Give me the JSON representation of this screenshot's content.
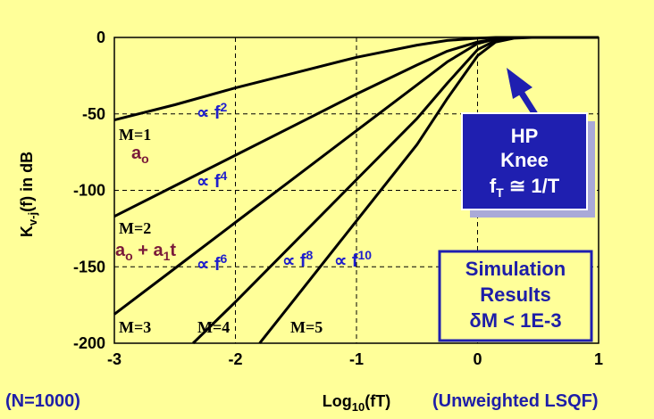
{
  "chart_data": {
    "type": "line",
    "xlabel": "Log10(fT)",
    "xlabel_base": "Log",
    "xlabel_sub": "10",
    "xlabel_rest": "(fT)",
    "ylabel_base": "K",
    "ylabel_sub": "v-j",
    "ylabel_rest": "(f) in dB",
    "xlim": [
      -3,
      1
    ],
    "ylim": [
      -200,
      0
    ],
    "x_ticks": [
      "-3",
      "-2",
      "-1",
      "0",
      "1"
    ],
    "y_ticks": [
      "0",
      "-50",
      "-100",
      "-150",
      "-200"
    ],
    "grid": true,
    "series": [
      {
        "name": "M=1",
        "x": [
          -3,
          -2.5,
          -2,
          -1.5,
          -1,
          -0.5,
          -0.25,
          0,
          0.15,
          0.3,
          1
        ],
        "y": [
          -54,
          -44,
          -33,
          -23,
          -13,
          -5,
          -2,
          -0.5,
          0,
          0,
          0
        ]
      },
      {
        "name": "M=2",
        "x": [
          -3,
          -2.5,
          -2,
          -1.5,
          -1,
          -0.5,
          -0.25,
          0,
          0.15,
          0.3,
          0.4,
          1
        ],
        "y": [
          -117,
          -97,
          -77,
          -57,
          -37,
          -18,
          -9,
          -3,
          -1,
          0,
          0,
          0
        ]
      },
      {
        "name": "M=3",
        "x": [
          -3,
          -2.5,
          -2,
          -1.5,
          -1,
          -0.5,
          -0.25,
          0,
          0.15,
          0.3,
          0.45,
          1
        ],
        "y": [
          -181,
          -151,
          -121,
          -91,
          -61,
          -31,
          -16,
          -4,
          -1,
          0,
          0,
          0
        ]
      },
      {
        "name": "M=4",
        "x": [
          -2.35,
          -2,
          -1.5,
          -1,
          -0.5,
          -0.25,
          0,
          0.15,
          0.3,
          0.45,
          1
        ],
        "y": [
          -200,
          -173,
          -133,
          -93,
          -53,
          -30,
          -8,
          -2,
          0,
          0,
          0
        ]
      },
      {
        "name": "M=5",
        "x": [
          -1.8,
          -1.5,
          -1,
          -0.5,
          -0.25,
          0,
          0.15,
          0.3,
          0.45,
          1
        ],
        "y": [
          -200,
          -170,
          -120,
          -70,
          -40,
          -12,
          -3,
          -0.5,
          0,
          0
        ]
      }
    ],
    "annotations": {
      "m1": "M=1",
      "m2": "M=2",
      "m3": "M=3",
      "m4": "M=4",
      "m5": "M=5",
      "a0_base": "a",
      "a0_sub": "o",
      "a01_a": "a",
      "a01_o": "o",
      "a01_plus": " + a",
      "a01_1": "1",
      "a01_t": "t",
      "prop": "∝ f",
      "exp2": "2",
      "exp4": "4",
      "exp6": "6",
      "exp8": "8",
      "exp10": "10"
    },
    "knee_box": {
      "line1": "HP",
      "line2": "Knee",
      "line3_f": "f",
      "line3_sub": "T",
      "line3_rest": " ≅ 1/T"
    },
    "sim_box": {
      "line1": "Simulation",
      "line2": "Results",
      "line3": "δM < 1E-3"
    },
    "footer_left": "(N=1000)",
    "footer_right": "(Unweighted LSQF)"
  },
  "colors": {
    "background": "#FFFF99",
    "knee_fill": "#1F1FB0",
    "sim_fill": "#FFFF99",
    "prop_text": "#1F1FCC",
    "coef_text": "#7A1A3A"
  }
}
